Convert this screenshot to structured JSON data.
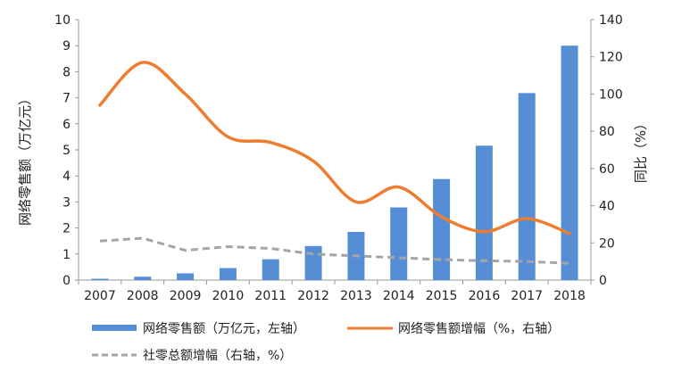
{
  "chart_data": {
    "type": "bar+line",
    "title": "",
    "categories": [
      "2007",
      "2008",
      "2009",
      "2010",
      "2011",
      "2012",
      "2013",
      "2014",
      "2015",
      "2016",
      "2017",
      "2018"
    ],
    "ylabel_left": "网络零售额（万亿元）",
    "ylabel_right": "同比（%）",
    "ylim_left": [
      0,
      10
    ],
    "ylim_right": [
      0,
      140
    ],
    "yticks_left": [
      0,
      1,
      2,
      3,
      4,
      5,
      6,
      7,
      8,
      9,
      10
    ],
    "yticks_right": [
      0,
      20,
      40,
      60,
      80,
      100,
      120,
      140
    ],
    "grid": false,
    "legend_position": "bottom",
    "series": [
      {
        "name": "网络零售额（万亿元，左轴）",
        "type": "bar",
        "axis": "left",
        "color": "#558ed5",
        "values": [
          0.05,
          0.13,
          0.26,
          0.46,
          0.8,
          1.31,
          1.85,
          2.79,
          3.88,
          5.16,
          7.18,
          9.0
        ]
      },
      {
        "name": "网络零售额增幅（%，右轴）",
        "type": "line",
        "axis": "right",
        "color": "#ed7d31",
        "values": [
          94,
          117,
          100,
          77,
          74,
          64,
          42,
          50,
          34,
          26,
          33,
          25
        ]
      },
      {
        "name": "社零总额增幅（右轴，%）",
        "type": "line-dashed",
        "axis": "right",
        "color": "#a5a5a5",
        "values": [
          21,
          22.5,
          16,
          18,
          17,
          14,
          13,
          12,
          11,
          10.4,
          10,
          9
        ]
      }
    ]
  }
}
